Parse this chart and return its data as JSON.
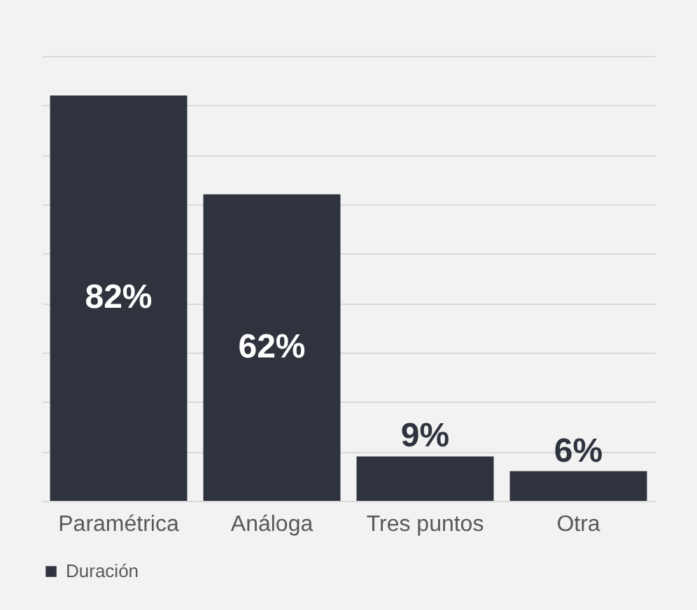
{
  "chart_data": {
    "type": "bar",
    "categories": [
      "Paramétrica",
      "Análoga",
      "Tres puntos",
      "Otra"
    ],
    "series": [
      {
        "name": "Duración",
        "color": "#2f333e",
        "values": [
          82,
          62,
          9,
          6
        ],
        "value_labels": [
          "82%",
          "62%",
          "9%",
          "6%"
        ]
      }
    ],
    "tick_labels": "x",
    "grid": "y",
    "legend": "bottom"
  }
}
